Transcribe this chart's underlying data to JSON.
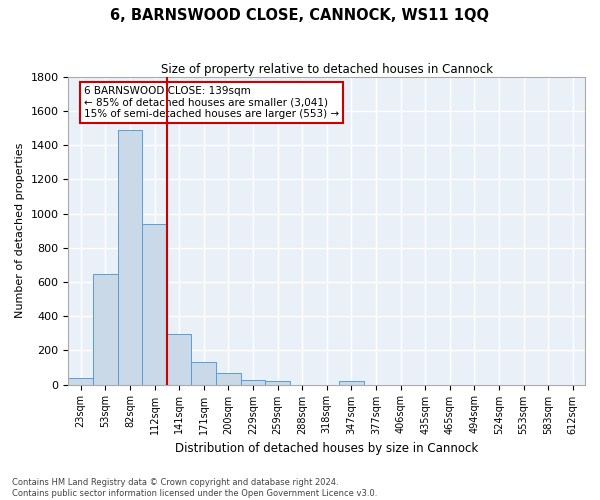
{
  "title": "6, BARNSWOOD CLOSE, CANNOCK, WS11 1QQ",
  "subtitle": "Size of property relative to detached houses in Cannock",
  "xlabel": "Distribution of detached houses by size in Cannock",
  "ylabel": "Number of detached properties",
  "bar_color": "#c9d9e8",
  "bar_edge_color": "#5b9bd5",
  "background_color": "#eaf0f8",
  "grid_color": "#ffffff",
  "vline_color": "#cc0000",
  "vline_x": 3.5,
  "bin_labels": [
    "23sqm",
    "53sqm",
    "82sqm",
    "112sqm",
    "141sqm",
    "171sqm",
    "200sqm",
    "229sqm",
    "259sqm",
    "288sqm",
    "318sqm",
    "347sqm",
    "377sqm",
    "406sqm",
    "435sqm",
    "465sqm",
    "494sqm",
    "524sqm",
    "553sqm",
    "583sqm",
    "612sqm"
  ],
  "bar_heights": [
    38,
    648,
    1486,
    938,
    295,
    130,
    68,
    25,
    20,
    0,
    0,
    20,
    0,
    0,
    0,
    0,
    0,
    0,
    0,
    0,
    0
  ],
  "ylim": [
    0,
    1800
  ],
  "yticks": [
    0,
    200,
    400,
    600,
    800,
    1000,
    1200,
    1400,
    1600,
    1800
  ],
  "annotation_title": "6 BARNSWOOD CLOSE: 139sqm",
  "annotation_line1": "← 85% of detached houses are smaller (3,041)",
  "annotation_line2": "15% of semi-detached houses are larger (553) →",
  "annotation_box_color": "#ffffff",
  "annotation_border_color": "#cc0000",
  "footer_line1": "Contains HM Land Registry data © Crown copyright and database right 2024.",
  "footer_line2": "Contains public sector information licensed under the Open Government Licence v3.0."
}
